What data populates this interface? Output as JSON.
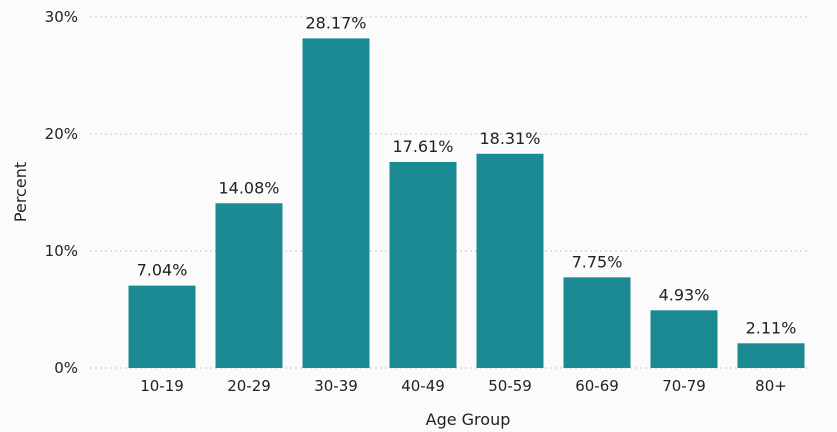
{
  "chart_data": {
    "type": "bar",
    "categories": [
      "10-19",
      "20-29",
      "30-39",
      "40-49",
      "50-59",
      "60-69",
      "70-79",
      "80+"
    ],
    "values": [
      7.04,
      14.08,
      28.17,
      17.61,
      18.31,
      7.75,
      4.93,
      2.11
    ],
    "data_labels": [
      "7.04%",
      "14.08%",
      "28.17%",
      "17.61%",
      "18.31%",
      "7.75%",
      "4.93%",
      "2.11%"
    ],
    "xlabel": "Age Group",
    "ylabel": "Percent",
    "ylim": [
      0,
      30
    ],
    "yticks": [
      0,
      10,
      20,
      30
    ],
    "ytick_labels": [
      "0%",
      "10%",
      "20%",
      "30%"
    ],
    "grid": true,
    "bar_color": "#1b8a92"
  }
}
